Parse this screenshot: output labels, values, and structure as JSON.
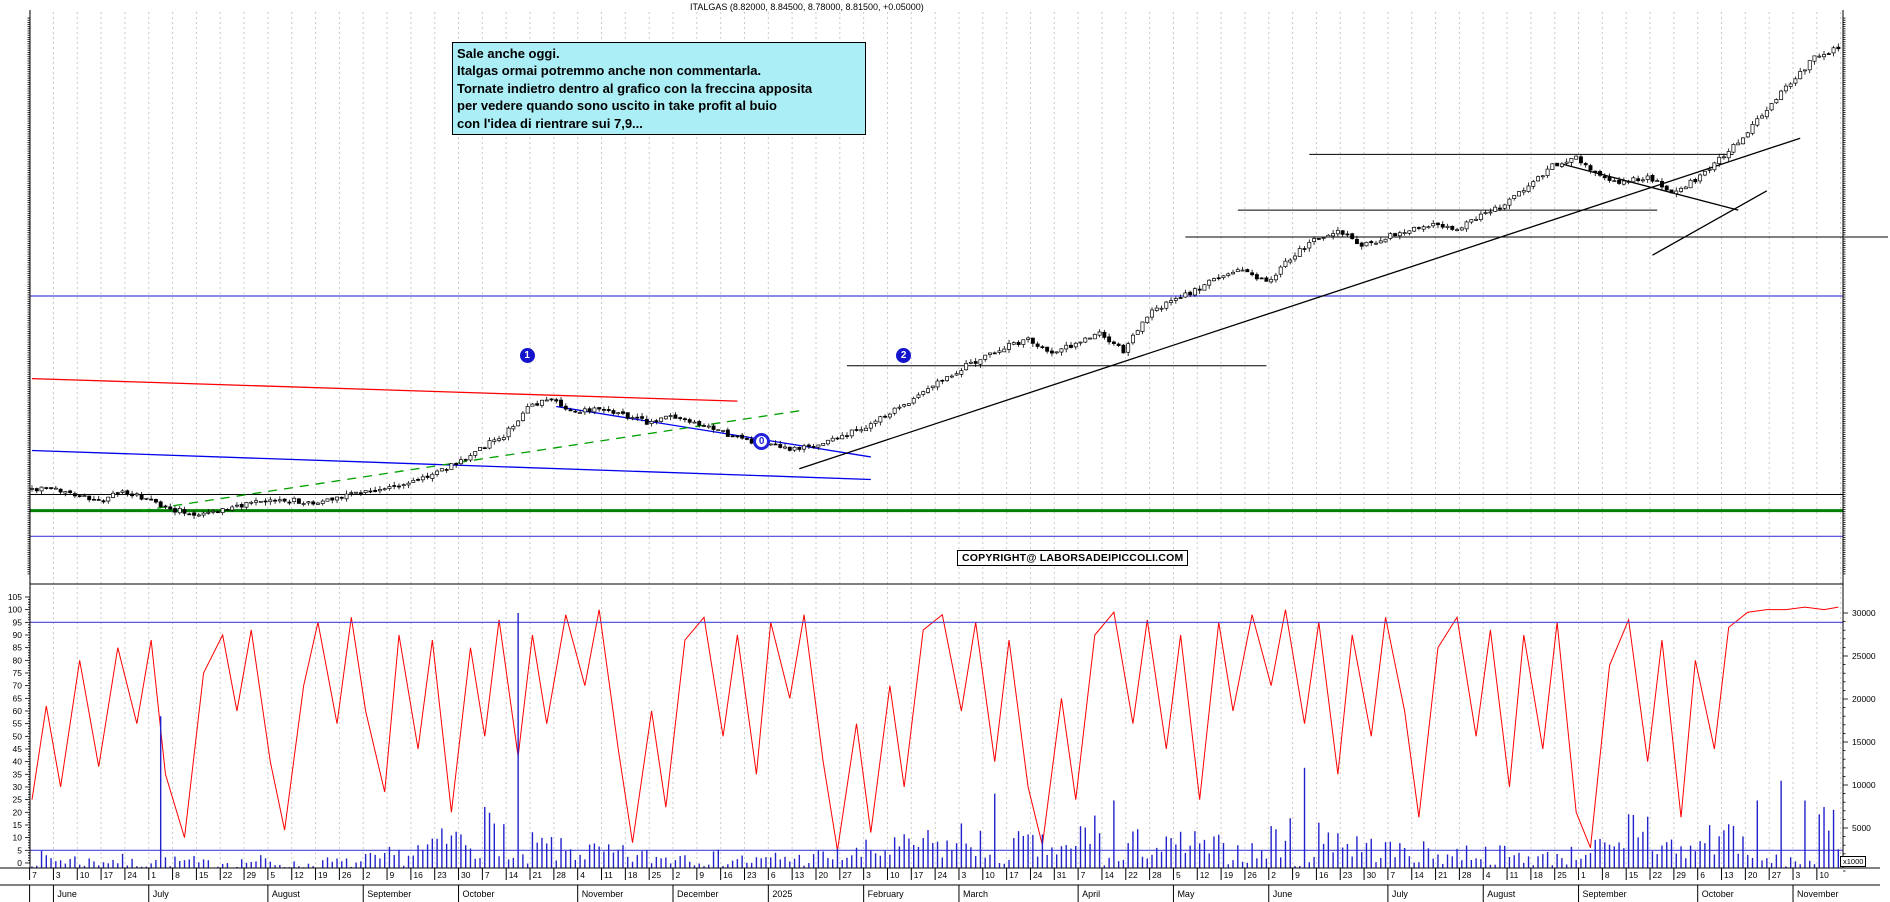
{
  "window": {
    "title": "ITALGAS (8.82000, 8.84500, 8.78000, 8.81500, +0.05000)"
  },
  "annotation_box": {
    "lines": [
      "Sale anche oggi.",
      "Italgas ormai potremmo anche non commentarla.",
      "Tornate indietro dentro al grafico con la freccina apposita",
      "per vedere quando sono uscito in take profit al buio",
      "con l'idea di rientrare sui 7,9..."
    ]
  },
  "copyright": "COPYRIGHT@ LABORSADEIPICCOLI.COM",
  "volume_multiplier_label": "x1000",
  "chart_data": {
    "type": "candlestick",
    "symbol": "ITALGAS",
    "last_quote": {
      "open": 8.82,
      "high": 8.845,
      "low": 8.78,
      "close": 8.815,
      "change": "+0.05000"
    },
    "price_axis": {
      "min": 3.9,
      "max": 9.1,
      "label_step": 0.1,
      "minor_step": 0.02,
      "side": "both"
    },
    "oscillator_axis": {
      "min": 0,
      "max": 105,
      "label_step": 5,
      "minor_step": 1
    },
    "volume_axis": {
      "min": 0,
      "max": 30000,
      "label_step": 5000,
      "minor_step": 1000,
      "unit": "x1000"
    },
    "calendar": {
      "months": [
        {
          "label": "",
          "days": [
            "7"
          ]
        },
        {
          "label": "June",
          "days": [
            "3",
            "10",
            "17",
            "24"
          ]
        },
        {
          "label": "July",
          "days": [
            "1",
            "8",
            "15",
            "22",
            "29"
          ]
        },
        {
          "label": "August",
          "days": [
            "5",
            "12",
            "19",
            "26"
          ]
        },
        {
          "label": "September",
          "days": [
            "2",
            "9",
            "16",
            "23"
          ]
        },
        {
          "label": "October",
          "days": [
            "30",
            "7",
            "14",
            "21",
            "28"
          ]
        },
        {
          "label": "November",
          "days": [
            "4",
            "11",
            "18",
            "25"
          ]
        },
        {
          "label": "December",
          "days": [
            "2",
            "9",
            "16",
            "23"
          ]
        },
        {
          "label": "2025",
          "days": [
            "6",
            "13",
            "20",
            "27"
          ]
        },
        {
          "label": "February",
          "days": [
            "3",
            "10",
            "17",
            "24"
          ]
        },
        {
          "label": "March",
          "days": [
            "3",
            "10",
            "17",
            "24",
            "31"
          ]
        },
        {
          "label": "April",
          "days": [
            "7",
            "14",
            "22",
            "28"
          ]
        },
        {
          "label": "May",
          "days": [
            "5",
            "12",
            "19",
            "26"
          ]
        },
        {
          "label": "June",
          "days": [
            "2",
            "9",
            "16",
            "23",
            "30"
          ]
        },
        {
          "label": "July",
          "days": [
            "7",
            "14",
            "21",
            "28"
          ]
        },
        {
          "label": "August",
          "days": [
            "4",
            "11",
            "18",
            "25"
          ]
        },
        {
          "label": "September",
          "days": [
            "1",
            "8",
            "15",
            "22",
            "29"
          ]
        },
        {
          "label": "October",
          "days": [
            "6",
            "13",
            "20",
            "27"
          ]
        },
        {
          "label": "November",
          "days": [
            "3",
            "10"
          ]
        }
      ]
    },
    "weekly_closes": [
      4.7,
      4.66,
      4.58,
      4.68,
      4.6,
      4.52,
      4.47,
      4.5,
      4.55,
      4.58,
      4.6,
      4.56,
      4.63,
      4.68,
      4.7,
      4.76,
      4.84,
      4.94,
      5.08,
      5.2,
      5.45,
      5.55,
      5.4,
      5.47,
      5.4,
      5.32,
      5.38,
      5.3,
      5.24,
      5.17,
      5.11,
      5.06,
      5.1,
      5.18,
      5.26,
      5.38,
      5.52,
      5.68,
      5.8,
      5.92,
      6.02,
      6.1,
      5.96,
      6.06,
      6.15,
      5.98,
      6.32,
      6.45,
      6.55,
      6.68,
      6.75,
      6.62,
      6.85,
      7.02,
      7.12,
      6.96,
      7.05,
      7.1,
      7.18,
      7.12,
      7.26,
      7.35,
      7.52,
      7.72,
      7.8,
      7.62,
      7.55,
      7.62,
      7.45,
      7.58,
      7.78,
      7.98,
      8.25,
      8.5,
      8.72,
      8.82
    ],
    "weekly_volume_k": [
      2000,
      1800,
      1500,
      1700,
      1300,
      18000,
      1500,
      1200,
      1400,
      1600,
      1200,
      1000,
      1400,
      1300,
      1800,
      2400,
      3200,
      4800,
      5500,
      6500,
      30000,
      3800,
      3200,
      3000,
      2600,
      2300,
      2100,
      2600,
      2100,
      1900,
      1600,
      2100,
      1900,
      2300,
      2600,
      3100,
      3600,
      4200,
      3900,
      5200,
      9000,
      4100,
      3600,
      3100,
      6200,
      8200,
      4200,
      3600,
      4100,
      3600,
      3100,
      2900,
      5200,
      12000,
      6200,
      4100,
      3600,
      3100,
      2900,
      2600,
      3100,
      2600,
      2300,
      2100,
      2500,
      3600,
      3100,
      7200,
      4100,
      3100,
      5200,
      6200,
      8200,
      10500,
      8200,
      6200
    ],
    "oscillator_points": [
      [
        0,
        25
      ],
      [
        3,
        62
      ],
      [
        6,
        30
      ],
      [
        10,
        80
      ],
      [
        14,
        38
      ],
      [
        18,
        85
      ],
      [
        22,
        55
      ],
      [
        25,
        88
      ],
      [
        28,
        35
      ],
      [
        32,
        10
      ],
      [
        36,
        75
      ],
      [
        40,
        90
      ],
      [
        43,
        60
      ],
      [
        46,
        92
      ],
      [
        50,
        40
      ],
      [
        53,
        13
      ],
      [
        57,
        70
      ],
      [
        60,
        95
      ],
      [
        64,
        55
      ],
      [
        67,
        97
      ],
      [
        70,
        60
      ],
      [
        74,
        28
      ],
      [
        77,
        90
      ],
      [
        81,
        45
      ],
      [
        84,
        88
      ],
      [
        88,
        20
      ],
      [
        92,
        85
      ],
      [
        95,
        50
      ],
      [
        98,
        96
      ],
      [
        102,
        42
      ],
      [
        105,
        90
      ],
      [
        108,
        55
      ],
      [
        112,
        98
      ],
      [
        116,
        70
      ],
      [
        119,
        100
      ],
      [
        123,
        45
      ],
      [
        126,
        8
      ],
      [
        130,
        60
      ],
      [
        133,
        22
      ],
      [
        137,
        88
      ],
      [
        141,
        97
      ],
      [
        145,
        50
      ],
      [
        148,
        90
      ],
      [
        152,
        35
      ],
      [
        155,
        95
      ],
      [
        159,
        65
      ],
      [
        162,
        98
      ],
      [
        166,
        40
      ],
      [
        169,
        5
      ],
      [
        173,
        55
      ],
      [
        176,
        12
      ],
      [
        180,
        70
      ],
      [
        183,
        30
      ],
      [
        187,
        92
      ],
      [
        191,
        98
      ],
      [
        195,
        60
      ],
      [
        198,
        95
      ],
      [
        202,
        40
      ],
      [
        205,
        88
      ],
      [
        209,
        30
      ],
      [
        212,
        7
      ],
      [
        216,
        65
      ],
      [
        219,
        25
      ],
      [
        223,
        90
      ],
      [
        227,
        99
      ],
      [
        231,
        55
      ],
      [
        234,
        96
      ],
      [
        238,
        45
      ],
      [
        241,
        90
      ],
      [
        245,
        25
      ],
      [
        249,
        95
      ],
      [
        252,
        60
      ],
      [
        256,
        98
      ],
      [
        260,
        70
      ],
      [
        263,
        100
      ],
      [
        267,
        55
      ],
      [
        270,
        95
      ],
      [
        274,
        35
      ],
      [
        277,
        90
      ],
      [
        281,
        50
      ],
      [
        284,
        97
      ],
      [
        288,
        60
      ],
      [
        291,
        18
      ],
      [
        295,
        85
      ],
      [
        299,
        97
      ],
      [
        303,
        50
      ],
      [
        306,
        92
      ],
      [
        310,
        30
      ],
      [
        313,
        90
      ],
      [
        317,
        45
      ],
      [
        320,
        95
      ],
      [
        324,
        20
      ],
      [
        327,
        6
      ],
      [
        331,
        78
      ],
      [
        335,
        96
      ],
      [
        339,
        40
      ],
      [
        342,
        88
      ],
      [
        346,
        18
      ],
      [
        349,
        80
      ],
      [
        353,
        45
      ],
      [
        356,
        93
      ],
      [
        360,
        99
      ],
      [
        364,
        100
      ],
      [
        368,
        100
      ],
      [
        372,
        101
      ],
      [
        376,
        100
      ],
      [
        379,
        101
      ]
    ],
    "price_hlines": [
      {
        "price": 6.5,
        "color": "#4444dd",
        "width": 1.2
      },
      {
        "price": 4.65,
        "color": "#000000",
        "width": 1
      },
      {
        "price": 4.5,
        "color": "#008000",
        "width": 3
      },
      {
        "price": 4.26,
        "color": "#4444dd",
        "width": 1.2
      }
    ],
    "price_segments": [
      {
        "price": 5.85,
        "d0": 171,
        "d1": 259
      },
      {
        "price": 7.82,
        "d0": 268,
        "d1": 357
      },
      {
        "price": 7.3,
        "d0": 253,
        "d1": 341
      },
      {
        "price": 7.05,
        "d0": 242,
        "d1": 379,
        "to_edge": true
      }
    ],
    "trendlines": [
      {
        "d0": 0,
        "p0": 5.73,
        "d1": 148,
        "p1": 5.52,
        "color": "#ff0000",
        "dash": ""
      },
      {
        "d0": 0,
        "p0": 5.06,
        "d1": 176,
        "p1": 4.79,
        "color": "#0000ee",
        "dash": ""
      },
      {
        "d0": 110,
        "p0": 5.47,
        "d1": 176,
        "p1": 5.0,
        "color": "#0000ee",
        "dash": ""
      },
      {
        "d0": 23,
        "p0": 4.5,
        "d1": 161,
        "p1": 5.43,
        "color": "#00a000",
        "dash": "9,7"
      },
      {
        "d0": 161,
        "p0": 4.89,
        "d1": 371,
        "p1": 7.97,
        "color": "#000000",
        "dash": ""
      },
      {
        "d0": 321,
        "p0": 7.73,
        "d1": 358,
        "p1": 7.3,
        "color": "#000000",
        "dash": ""
      },
      {
        "d0": 340,
        "p0": 6.88,
        "d1": 364,
        "p1": 7.48,
        "color": "#000000",
        "dash": ""
      }
    ],
    "oscillator_hlines": [
      {
        "value": 95,
        "color": "#4444dd"
      },
      {
        "value": 5,
        "color": "#4444dd"
      }
    ],
    "markers": [
      {
        "label": "1",
        "day": 104,
        "price": 5.94,
        "style": "filled"
      },
      {
        "label": "2",
        "day": 183,
        "price": 5.94,
        "style": "filled"
      },
      {
        "label": "0",
        "day": 153,
        "price": 5.15,
        "style": "ring"
      }
    ],
    "colors": {
      "up_candle": "#ffffff",
      "down_candle": "#000000",
      "candle_outline": "#000000",
      "oscillator": "#ff0000",
      "volume": "#2222cc",
      "grid": "#c9c9c9",
      "support_blue": "#4444dd",
      "support_green": "#008000",
      "marker_blue": "#1414cc",
      "annotation_bg": "#aceef6"
    }
  }
}
